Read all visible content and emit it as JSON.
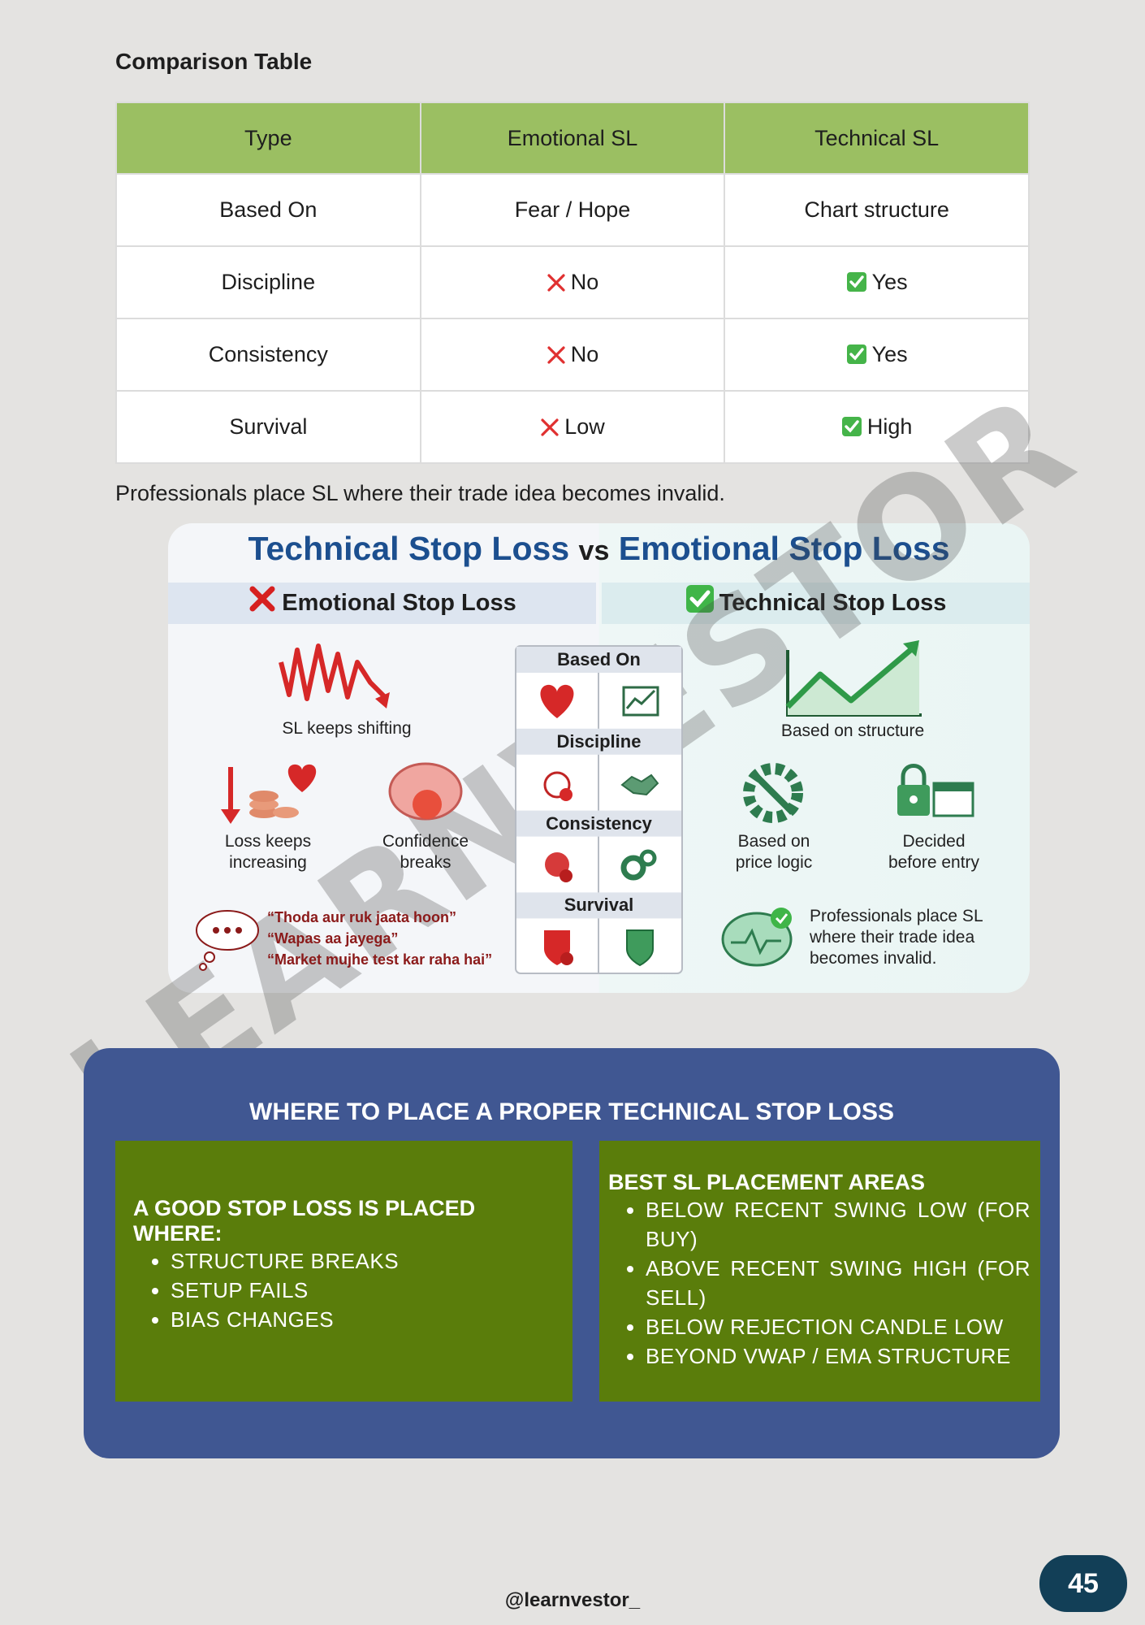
{
  "heading": "Comparison Table",
  "table": {
    "header": [
      "Type",
      "Emotional SL",
      "Technical SL"
    ],
    "rows": [
      [
        "Based On",
        "Fear / Hope",
        "Chart structure"
      ],
      [
        "Discipline",
        "No",
        "Yes"
      ],
      [
        "Consistency",
        "No",
        "Yes"
      ],
      [
        "Survival",
        "Low",
        "High"
      ]
    ]
  },
  "note": "Professionals place SL where their trade idea becomes invalid.",
  "infographic": {
    "title": [
      "Technical Stop Loss",
      "vs",
      "Emotional Stop Loss"
    ],
    "left_header": "Emotional Stop Loss",
    "right_header": "Technical Stop Loss",
    "center_headers": [
      "Based On",
      "Discipline",
      "Consistency",
      "Survival"
    ],
    "left_items": [
      "SL keeps shifting",
      "Loss keeps increasing",
      "Confidence breaks"
    ],
    "quotes": [
      "“Thoda aur ruk jaata hoon”",
      "“Wapas aa jayega”",
      "“Market mujhe test kar raha hai”"
    ],
    "right_items": [
      "Based on structure",
      "Based on price logic",
      "Decided before entry"
    ],
    "right_note": "Professionals place SL where their trade idea becomes invalid."
  },
  "watermark": "LEARNVESTOR",
  "placement": {
    "title": "WHERE TO PLACE A PROPER TECHNICAL STOP LOSS",
    "left": {
      "heading": "A GOOD STOP LOSS IS PLACED WHERE:",
      "items": [
        "STRUCTURE BREAKS",
        "SETUP FAILS",
        "BIAS CHANGES"
      ]
    },
    "right": {
      "heading": "BEST SL PLACEMENT AREAS",
      "items": [
        "BELOW RECENT SWING LOW (FOR BUY)",
        "ABOVE RECENT SWING HIGH (FOR SELL)",
        "BELOW REJECTION CANDLE LOW",
        "BEYOND VWAP / EMA STRUCTURE"
      ]
    }
  },
  "footer": "@learnvestor_",
  "page_number": 45
}
